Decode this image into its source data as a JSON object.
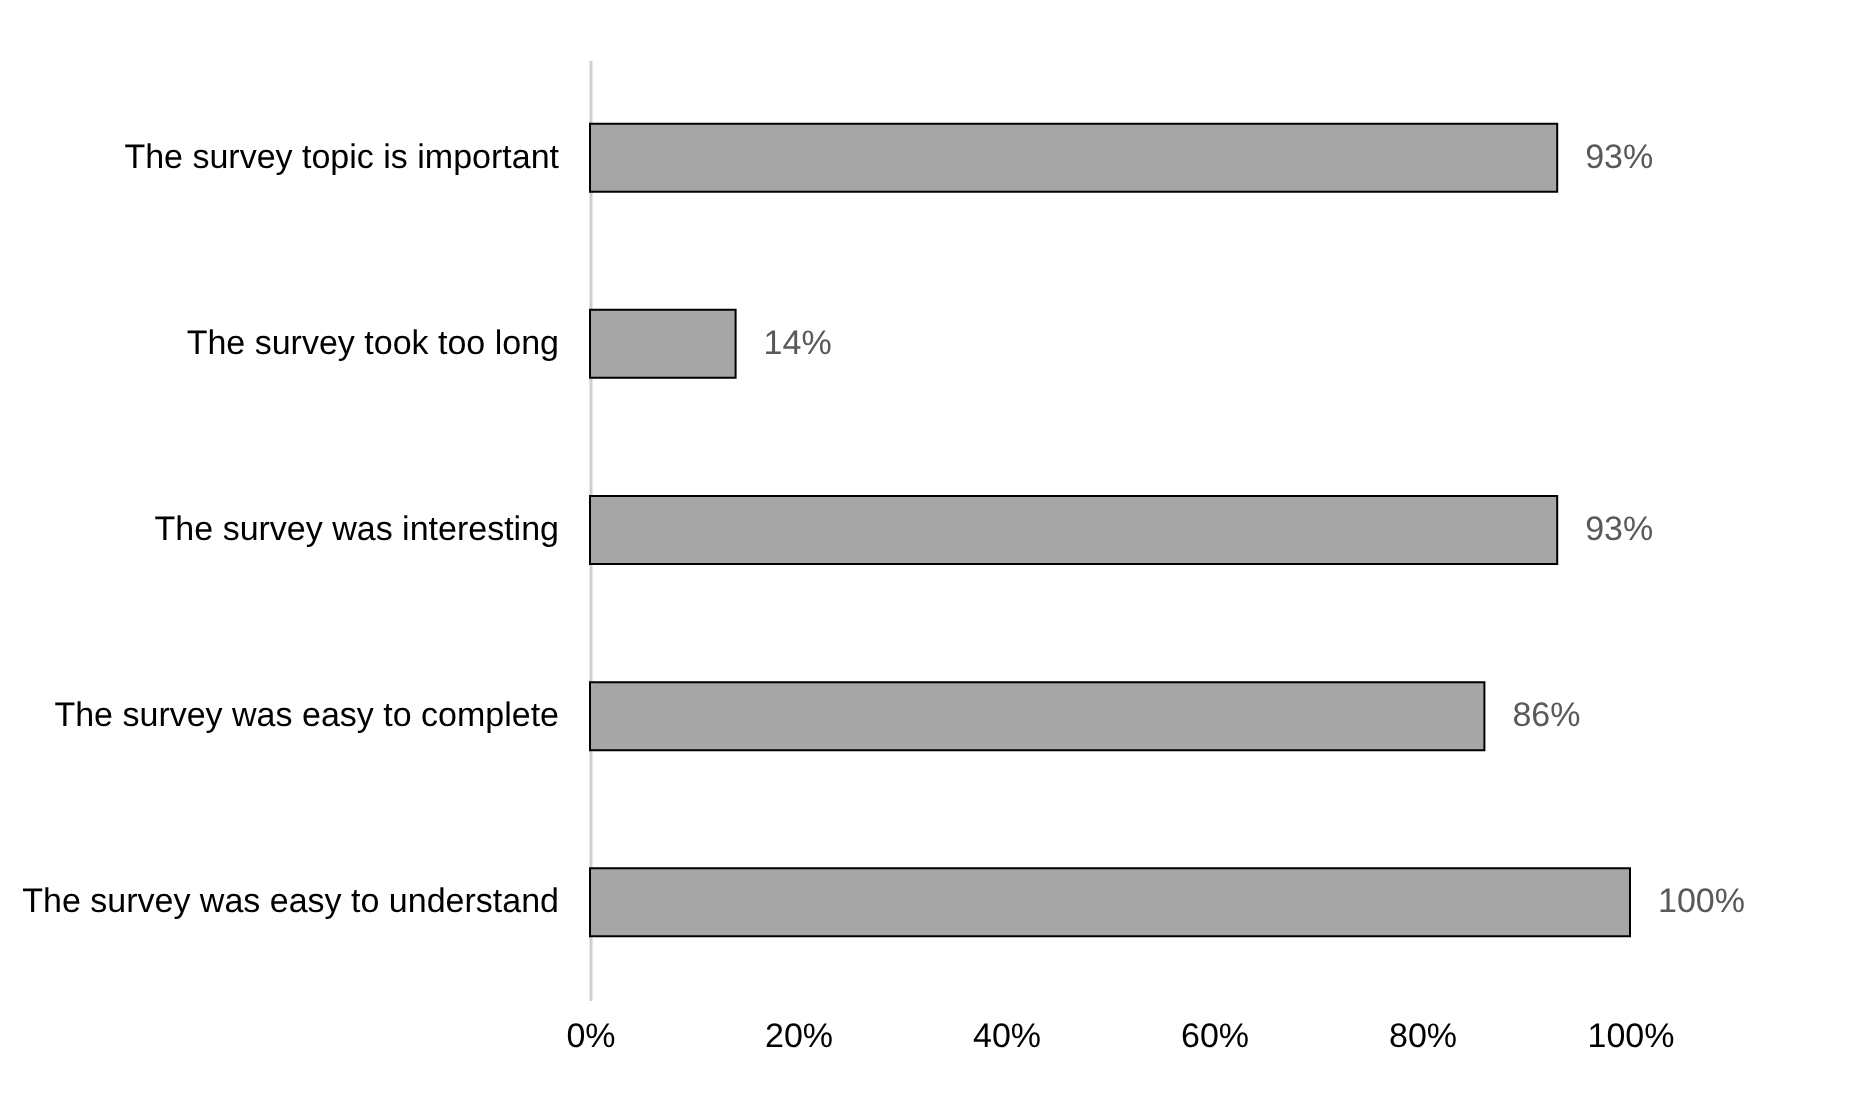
{
  "chart_data": {
    "type": "bar",
    "orientation": "horizontal",
    "categories": [
      "The survey topic is important",
      "The survey took too long",
      "The survey was interesting",
      "The survey was easy to complete",
      "The survey was easy to understand"
    ],
    "values": [
      93,
      14,
      93,
      86,
      100
    ],
    "value_labels": [
      "93%",
      "14%",
      "93%",
      "86%",
      "100%"
    ],
    "color": "#a6a6a6",
    "xlim": [
      0,
      100
    ],
    "xticks": [
      {
        "value": 0,
        "label": "0%"
      },
      {
        "value": 20,
        "label": "20%"
      },
      {
        "value": 40,
        "label": "40%"
      },
      {
        "value": 60,
        "label": "60%"
      },
      {
        "value": 80,
        "label": "80%"
      },
      {
        "value": 100,
        "label": "100%"
      }
    ],
    "grid": false
  }
}
